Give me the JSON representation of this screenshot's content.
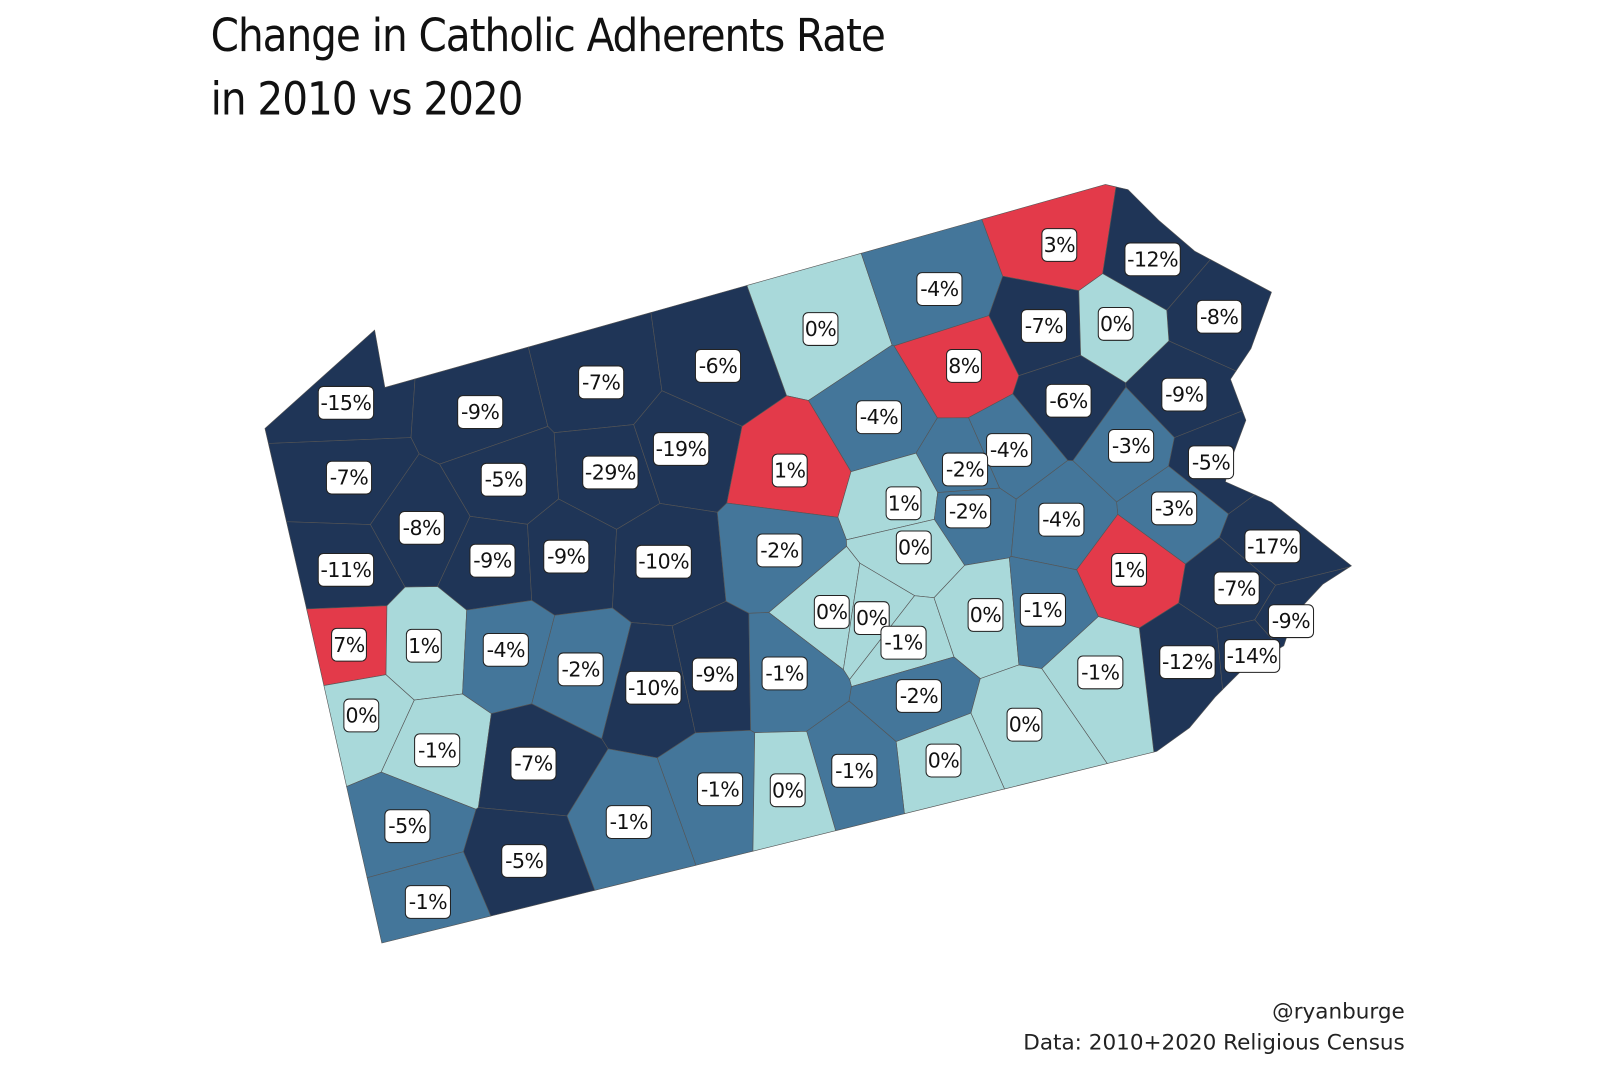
{
  "chart_data": {
    "type": "map",
    "title": [
      "Change in Catholic Adherents Rate",
      "in 2010 vs 2020"
    ],
    "credits": [
      "@ryanburge",
      "Data: 2010+2020 Religious Census"
    ],
    "values": [
      -15,
      -9,
      -7,
      -6,
      0,
      -4,
      3,
      -12,
      -8,
      -7,
      0,
      8,
      -9,
      -6,
      -4,
      -3,
      -4,
      -2,
      -5,
      -7,
      -5,
      -29,
      -19,
      1,
      1,
      -2,
      -3,
      -4,
      -17,
      -8,
      -9,
      -9,
      -10,
      -2,
      0,
      1,
      -11,
      -7,
      -9,
      7,
      1,
      -4,
      -2,
      0,
      0,
      -1,
      0,
      -1,
      -12,
      -14,
      -10,
      -9,
      -1,
      -2,
      -1,
      0,
      -1,
      -7,
      0,
      0,
      -1,
      -1,
      0,
      -1,
      -5,
      -5,
      -1
    ],
    "value_labels": [
      "-15%",
      "-9%",
      "-7%",
      "-6%",
      "0%",
      "-4%",
      "3%",
      "-12%",
      "-8%",
      "-7%",
      "0%",
      "8%",
      "-9%",
      "-6%",
      "-4%",
      "-3%",
      "-4%",
      "-2%",
      "-5%",
      "-7%",
      "-5%",
      "-29%",
      "-19%",
      "1%",
      "1%",
      "-2%",
      "-3%",
      "-4%",
      "-17%",
      "-8%",
      "-9%",
      "-9%",
      "-10%",
      "-2%",
      "0%",
      "1%",
      "-11%",
      "-7%",
      "-9%",
      "7%",
      "1%",
      "-4%",
      "-2%",
      "0%",
      "0%",
      "-1%",
      "0%",
      "-1%",
      "-12%",
      "-14%",
      "-10%",
      "-9%",
      "-1%",
      "-2%",
      "-1%",
      "0%",
      "-1%",
      "-7%",
      "0%",
      "0%",
      "-1%",
      "-1%",
      "0%",
      "-1%",
      "-5%",
      "-5%",
      "-1%"
    ],
    "colors": [
      "#1f3557",
      "#1f3557",
      "#1f3557",
      "#1f3557",
      "#a9d9da",
      "#44769a",
      "#e33a4a",
      "#1f3557",
      "#1f3557",
      "#1f3557",
      "#a9d9da",
      "#e33a4a",
      "#1f3557",
      "#1f3557",
      "#44769a",
      "#44769a",
      "#44769a",
      "#44769a",
      "#1f3557",
      "#1f3557",
      "#1f3557",
      "#1f3557",
      "#1f3557",
      "#e33a4a",
      "#a9d9da",
      "#44769a",
      "#44769a",
      "#44769a",
      "#1f3557",
      "#1f3557",
      "#1f3557",
      "#1f3557",
      "#1f3557",
      "#44769a",
      "#a9d9da",
      "#e33a4a",
      "#1f3557",
      "#1f3557",
      "#1f3557",
      "#e33a4a",
      "#a9d9da",
      "#44769a",
      "#44769a",
      "#a9d9da",
      "#a9d9da",
      "#a9d9da",
      "#a9d9da",
      "#44769a",
      "#1f3557",
      "#1f3557",
      "#1f3557",
      "#1f3557",
      "#44769a",
      "#44769a",
      "#a9d9da",
      "#a9d9da",
      "#a9d9da",
      "#1f3557",
      "#a9d9da",
      "#a9d9da",
      "#44769a",
      "#44769a",
      "#a9d9da",
      "#44769a",
      "#44769a",
      "#1f3557",
      "#44769a"
    ]
  }
}
